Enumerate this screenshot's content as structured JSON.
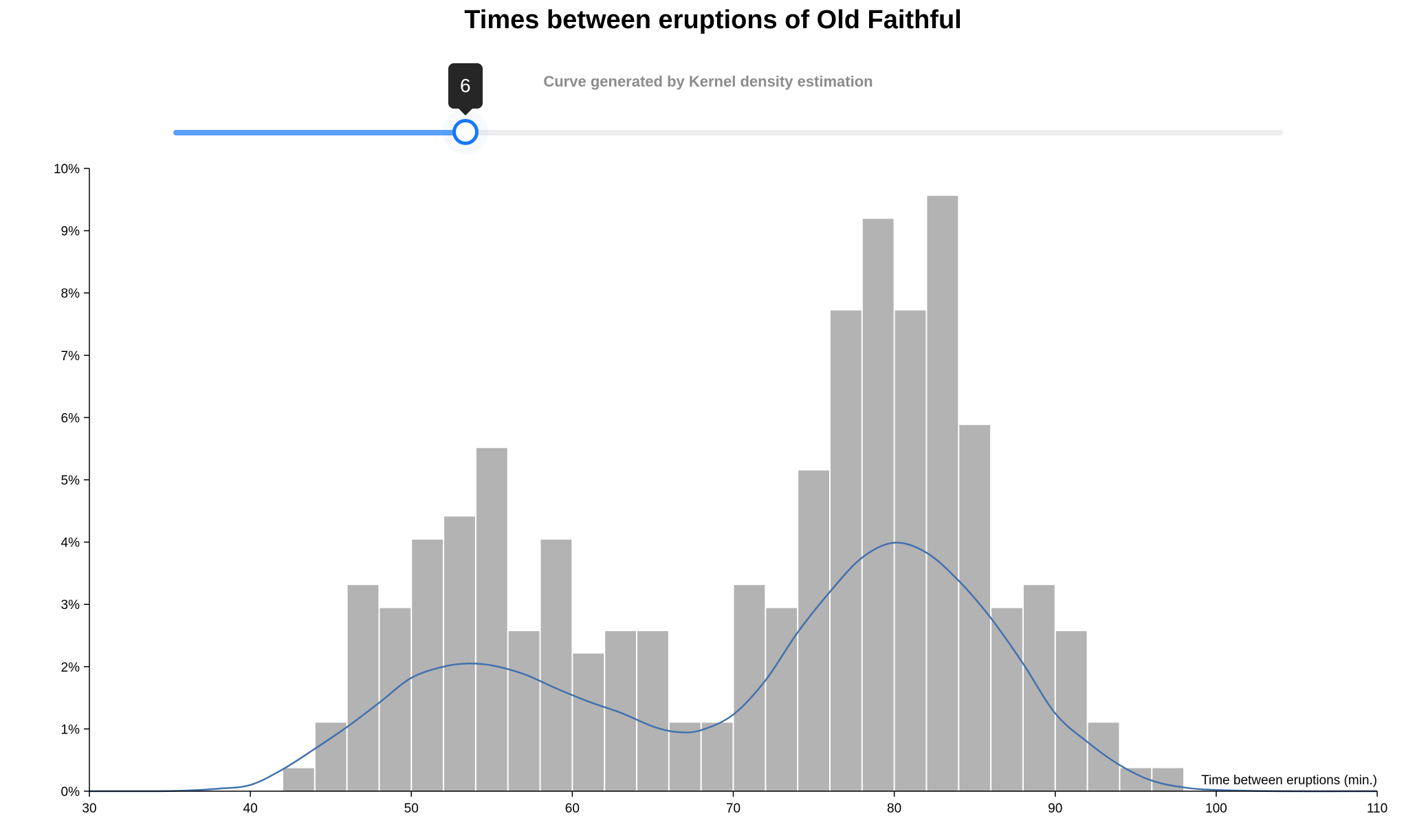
{
  "title": "Times between eruptions of Old Faithful",
  "subtitle": "Curve generated by Kernel density estimation",
  "slider": {
    "value": 6,
    "label": "6",
    "min": 1,
    "max": 20,
    "fraction": 0.2632
  },
  "colors": {
    "bars": "#b3b3b3",
    "curve": "#4271ae",
    "slider_track": "#5aa0f7",
    "slider_handle": "#1677ff",
    "tooltip": "#262626"
  },
  "chart_data": {
    "type": "bar",
    "title": "Times between eruptions of Old Faithful",
    "subtitle": "Curve generated by Kernel density estimation",
    "xlabel": "Time between eruptions (min.)",
    "ylabel": "",
    "xlim": [
      30,
      110
    ],
    "ylim": [
      0,
      0.1
    ],
    "x_ticks": [
      "30",
      "40",
      "50",
      "60",
      "70",
      "80",
      "90",
      "100",
      "110"
    ],
    "y_ticks": [
      "0%",
      "1%",
      "2%",
      "3%",
      "4%",
      "5%",
      "6%",
      "7%",
      "8%",
      "9%",
      "10%"
    ],
    "bin_width": 2,
    "bins": [
      {
        "x0": 42,
        "x1": 44,
        "value": 0.0037
      },
      {
        "x0": 44,
        "x1": 46,
        "value": 0.011
      },
      {
        "x0": 46,
        "x1": 48,
        "value": 0.0331
      },
      {
        "x0": 48,
        "x1": 50,
        "value": 0.0294
      },
      {
        "x0": 50,
        "x1": 52,
        "value": 0.0404
      },
      {
        "x0": 52,
        "x1": 54,
        "value": 0.0441
      },
      {
        "x0": 54,
        "x1": 56,
        "value": 0.0551
      },
      {
        "x0": 56,
        "x1": 58,
        "value": 0.0257
      },
      {
        "x0": 58,
        "x1": 60,
        "value": 0.0404
      },
      {
        "x0": 60,
        "x1": 62,
        "value": 0.0221
      },
      {
        "x0": 62,
        "x1": 64,
        "value": 0.0257
      },
      {
        "x0": 64,
        "x1": 66,
        "value": 0.0257
      },
      {
        "x0": 66,
        "x1": 68,
        "value": 0.011
      },
      {
        "x0": 68,
        "x1": 70,
        "value": 0.011
      },
      {
        "x0": 70,
        "x1": 72,
        "value": 0.0331
      },
      {
        "x0": 72,
        "x1": 74,
        "value": 0.0294
      },
      {
        "x0": 74,
        "x1": 76,
        "value": 0.0515
      },
      {
        "x0": 76,
        "x1": 78,
        "value": 0.0772
      },
      {
        "x0": 78,
        "x1": 80,
        "value": 0.0919
      },
      {
        "x0": 80,
        "x1": 82,
        "value": 0.0772
      },
      {
        "x0": 82,
        "x1": 84,
        "value": 0.0956
      },
      {
        "x0": 84,
        "x1": 86,
        "value": 0.0588
      },
      {
        "x0": 86,
        "x1": 88,
        "value": 0.0294
      },
      {
        "x0": 88,
        "x1": 90,
        "value": 0.0331
      },
      {
        "x0": 90,
        "x1": 92,
        "value": 0.0257
      },
      {
        "x0": 92,
        "x1": 94,
        "value": 0.011
      },
      {
        "x0": 94,
        "x1": 96,
        "value": 0.0037
      },
      {
        "x0": 96,
        "x1": 98,
        "value": 0.0037
      }
    ],
    "density_curve": [
      {
        "x": 30,
        "y": 0.0
      },
      {
        "x": 34,
        "y": 0.0
      },
      {
        "x": 36,
        "y": 0.0001
      },
      {
        "x": 38,
        "y": 0.0004
      },
      {
        "x": 40,
        "y": 0.001
      },
      {
        "x": 42,
        "y": 0.0035
      },
      {
        "x": 44,
        "y": 0.0068
      },
      {
        "x": 46,
        "y": 0.0103
      },
      {
        "x": 48,
        "y": 0.0142
      },
      {
        "x": 50,
        "y": 0.0182
      },
      {
        "x": 52,
        "y": 0.02
      },
      {
        "x": 53.5,
        "y": 0.0205
      },
      {
        "x": 55,
        "y": 0.0202
      },
      {
        "x": 57,
        "y": 0.0188
      },
      {
        "x": 59,
        "y": 0.0165
      },
      {
        "x": 61,
        "y": 0.0144
      },
      {
        "x": 63,
        "y": 0.0126
      },
      {
        "x": 65,
        "y": 0.0104
      },
      {
        "x": 66.5,
        "y": 0.0095
      },
      {
        "x": 68,
        "y": 0.0098
      },
      {
        "x": 70,
        "y": 0.0123
      },
      {
        "x": 72,
        "y": 0.0178
      },
      {
        "x": 74,
        "y": 0.0255
      },
      {
        "x": 76,
        "y": 0.032
      },
      {
        "x": 78,
        "y": 0.0375
      },
      {
        "x": 80,
        "y": 0.0399
      },
      {
        "x": 82,
        "y": 0.0383
      },
      {
        "x": 84,
        "y": 0.0338
      },
      {
        "x": 86,
        "y": 0.0278
      },
      {
        "x": 88,
        "y": 0.0205
      },
      {
        "x": 90,
        "y": 0.0125
      },
      {
        "x": 92,
        "y": 0.0079
      },
      {
        "x": 94,
        "y": 0.0042
      },
      {
        "x": 96,
        "y": 0.0017
      },
      {
        "x": 98,
        "y": 0.0006
      },
      {
        "x": 100,
        "y": 0.0002
      },
      {
        "x": 104,
        "y": 0.0
      },
      {
        "x": 110,
        "y": 0.0
      }
    ]
  }
}
